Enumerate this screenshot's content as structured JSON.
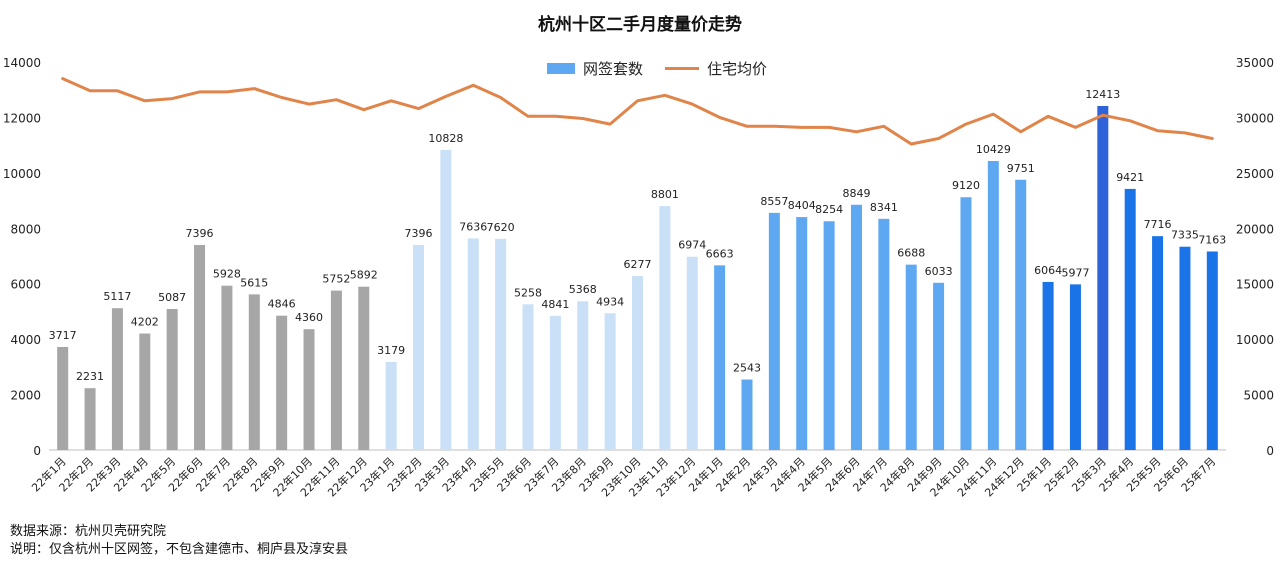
{
  "chart_data": {
    "type": "bar",
    "title": "杭州十区二手月度量价走势",
    "categories": [
      "22年1月",
      "22年2月",
      "22年3月",
      "22年4月",
      "22年5月",
      "22年6月",
      "22年7月",
      "22年8月",
      "22年9月",
      "22年10月",
      "22年11月",
      "22年12月",
      "23年1月",
      "23年2月",
      "23年3月",
      "23年4月",
      "23年5月",
      "23年6月",
      "23年7月",
      "23年8月",
      "23年9月",
      "23年10月",
      "23年11月",
      "23年12月",
      "24年1月",
      "24年2月",
      "24年3月",
      "24年4月",
      "24年5月",
      "24年6月",
      "24年7月",
      "24年8月",
      "24年9月",
      "24年10月",
      "24年11月",
      "24年12月",
      "25年1月",
      "25年2月",
      "25年3月",
      "25年4月",
      "25年5月",
      "25年6月",
      "25年7月"
    ],
    "series": [
      {
        "name": "网签套数",
        "type": "bar",
        "axis": "left",
        "values": [
          3717,
          2231,
          5117,
          4202,
          5087,
          7396,
          5928,
          5615,
          4846,
          4360,
          5752,
          5892,
          3179,
          7396,
          10828,
          7636,
          7620,
          5258,
          4841,
          5368,
          4934,
          6277,
          8801,
          6974,
          6663,
          2543,
          8557,
          8404,
          8254,
          8849,
          8341,
          6688,
          6033,
          9120,
          10429,
          9751,
          6064,
          5977,
          12413,
          9421,
          7716,
          7335,
          7163
        ],
        "colors": {
          "2022": "#a6a6a6",
          "2023": "#c9e0f7",
          "2024": "#5ea8f2",
          "2025": "#1a74e8",
          "2025-peak": "#2e62d8"
        }
      },
      {
        "name": "住宅均价",
        "type": "line",
        "axis": "right",
        "color": "#e0844a",
        "values": [
          33500,
          32400,
          32400,
          31500,
          31700,
          32300,
          32300,
          32600,
          31800,
          31200,
          31600,
          30700,
          31500,
          30800,
          31900,
          32900,
          31800,
          30100,
          30100,
          29900,
          29400,
          31500,
          32000,
          31200,
          30000,
          29200,
          29200,
          29100,
          29100,
          28700,
          29200,
          27600,
          28100,
          29400,
          30300,
          28700,
          30100,
          29100,
          30200,
          29700,
          28800,
          28600,
          28100
        ]
      }
    ],
    "y_left": {
      "min": 0,
      "max": 14000,
      "ticks": [
        0,
        2000,
        4000,
        6000,
        8000,
        10000,
        12000,
        14000
      ]
    },
    "y_right": {
      "min": 0,
      "max": 35000,
      "ticks": [
        0,
        5000,
        10000,
        15000,
        20000,
        25000,
        30000,
        35000
      ]
    },
    "grid": false,
    "legend_position": "top-center",
    "label_color": "#222222"
  },
  "footnotes": {
    "source": "数据来源：杭州贝壳研究院",
    "note": "说明：仅含杭州十区网签，不包含建德市、桐庐县及淳安县"
  }
}
